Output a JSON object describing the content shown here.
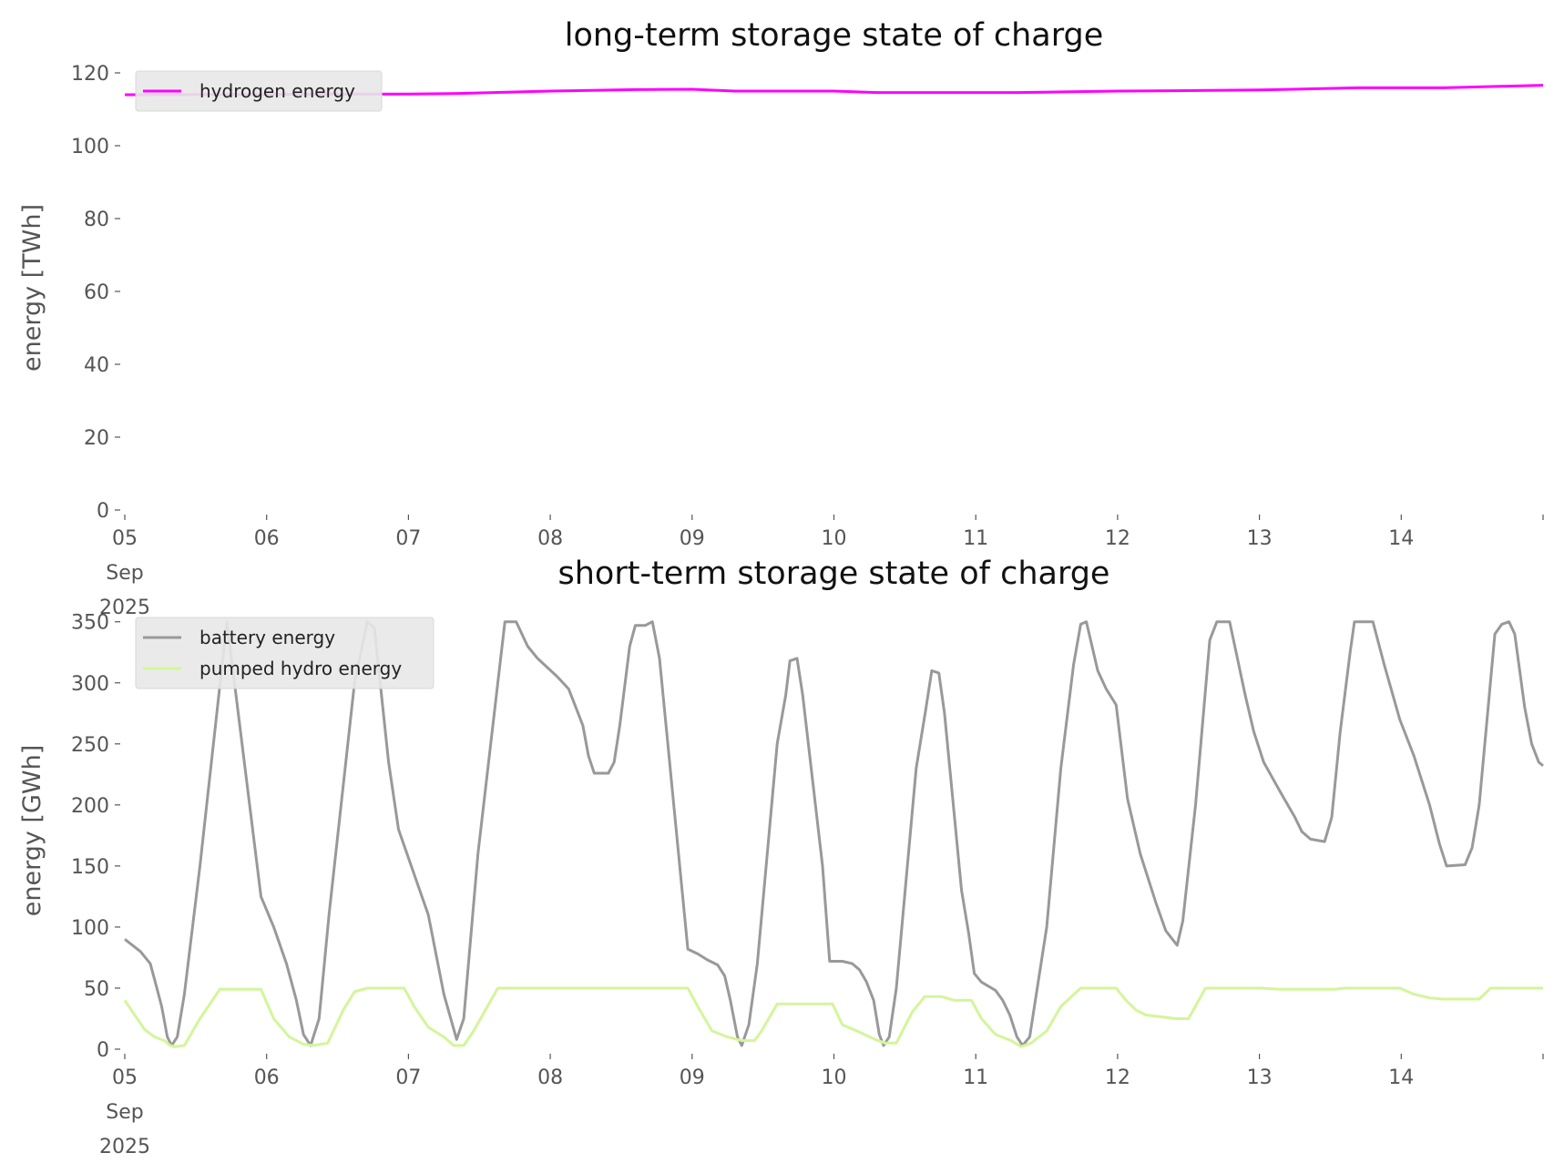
{
  "chart_data": [
    {
      "type": "line",
      "title": "long-term storage state of charge",
      "xlabel": "",
      "ylabel": "energy [TWh]",
      "x_unit": "days since 05 Sep 2025",
      "xlim": [
        0,
        10
      ],
      "ylim": [
        0,
        122
      ],
      "yticks": [
        0,
        20,
        40,
        60,
        80,
        100,
        120
      ],
      "xtick_labels": [
        "05\nSep\n2025",
        "06",
        "07",
        "08",
        "09",
        "10",
        "11",
        "12",
        "13",
        "14",
        ""
      ],
      "grid": false,
      "legend": "top-left",
      "series": [
        {
          "name": "hydrogen energy",
          "color": "#ff00ff",
          "x": [
            0,
            1,
            2,
            2.3,
            3,
            3.6,
            4,
            4.3,
            5,
            5.3,
            6,
            6.3,
            7,
            7.4,
            8,
            8.7,
            9.3,
            9.7,
            10
          ],
          "y": [
            114,
            114.1,
            114.2,
            114.3,
            115,
            115.4,
            115.5,
            115,
            115,
            114.6,
            114.6,
            114.6,
            115,
            115.1,
            115.3,
            115.9,
            115.9,
            116.3,
            116.6
          ]
        }
      ]
    },
    {
      "type": "line",
      "title": "short-term storage state of charge",
      "xlabel": "",
      "ylabel": "energy [GWh]",
      "x_unit": "days since 05 Sep 2025",
      "xlim": [
        0,
        10
      ],
      "ylim": [
        0,
        358
      ],
      "yticks": [
        0,
        50,
        100,
        150,
        200,
        250,
        300,
        350
      ],
      "xtick_labels": [
        "05\nSep\n2025",
        "06",
        "07",
        "08",
        "09",
        "10",
        "11",
        "12",
        "13",
        "14",
        ""
      ],
      "grid": false,
      "legend": "top-left",
      "series": [
        {
          "name": "battery energy",
          "color": "#999999",
          "x": [
            0,
            0.11,
            0.18,
            0.21,
            0.26,
            0.3,
            0.33,
            0.37,
            0.42,
            0.53,
            0.72,
            0.96,
            1.05,
            1.14,
            1.21,
            1.26,
            1.31,
            1.37,
            1.44,
            1.62,
            1.71,
            1.76,
            1.86,
            1.93,
            2.14,
            2.25,
            2.34,
            2.39,
            2.49,
            2.63,
            2.68,
            2.76,
            2.84,
            2.91,
            3.05,
            3.13,
            3.18,
            3.23,
            3.27,
            3.31,
            3.41,
            3.45,
            3.49,
            3.56,
            3.6,
            3.67,
            3.72,
            3.77,
            3.97,
            4.04,
            4.11,
            4.18,
            4.23,
            4.27,
            4.32,
            4.35,
            4.4,
            4.46,
            4.6,
            4.66,
            4.69,
            4.74,
            4.78,
            4.92,
            4.97,
            5.06,
            5.13,
            5.18,
            5.23,
            5.28,
            5.32,
            5.35,
            5.39,
            5.44,
            5.58,
            5.65,
            5.69,
            5.74,
            5.78,
            5.9,
            5.95,
            5.99,
            6.04,
            6.14,
            6.19,
            6.24,
            6.29,
            6.33,
            6.38,
            6.5,
            6.6,
            6.69,
            6.74,
            6.78,
            6.86,
            6.92,
            6.99,
            7.07,
            7.16,
            7.27,
            7.34,
            7.42,
            7.46,
            7.55,
            7.65,
            7.7,
            7.79,
            7.9,
            7.96,
            8.03,
            8.15,
            8.25,
            8.3,
            8.36,
            8.46,
            8.51,
            8.57,
            8.64,
            8.67,
            8.8,
            8.88,
            8.99,
            9.09,
            9.2,
            9.27,
            9.32,
            9.45,
            9.5,
            9.55,
            9.66,
            9.71,
            9.76,
            9.8,
            9.87,
            9.92,
            9.97,
            10
          ],
          "y": [
            90,
            80,
            70,
            57,
            35,
            10,
            3,
            10,
            45,
            150,
            350,
            125,
            100,
            70,
            40,
            12,
            3,
            25,
            110,
            300,
            350,
            345,
            235,
            180,
            110,
            45,
            8,
            25,
            160,
            300,
            350,
            350,
            330,
            320,
            305,
            295,
            280,
            265,
            240,
            226,
            226,
            235,
            265,
            330,
            347,
            347,
            350,
            320,
            82,
            78,
            73,
            69,
            60,
            40,
            10,
            3,
            20,
            70,
            250,
            290,
            318,
            320,
            290,
            150,
            72,
            72,
            70,
            65,
            55,
            40,
            12,
            3,
            10,
            50,
            230,
            280,
            310,
            308,
            275,
            130,
            95,
            62,
            55,
            48,
            40,
            28,
            10,
            3,
            10,
            100,
            230,
            315,
            348,
            350,
            310,
            295,
            282,
            205,
            160,
            120,
            97,
            85,
            105,
            200,
            335,
            350,
            350,
            290,
            260,
            235,
            210,
            190,
            178,
            172,
            170,
            190,
            260,
            325,
            350,
            350,
            315,
            270,
            240,
            200,
            168,
            150,
            151,
            165,
            200,
            340,
            348,
            350,
            340,
            280,
            250,
            235,
            232
          ]
        },
        {
          "name": "pumped hydro energy",
          "color": "#d4f59a",
          "x": [
            0,
            0.07,
            0.14,
            0.21,
            0.28,
            0.32,
            0.35,
            0.42,
            0.53,
            0.67,
            0.96,
            1.05,
            1.16,
            1.26,
            1.33,
            1.43,
            1.54,
            1.62,
            1.71,
            1.97,
            2.04,
            2.14,
            2.25,
            2.32,
            2.39,
            2.46,
            2.63,
            3.97,
            4.04,
            4.14,
            4.25,
            4.35,
            4.44,
            4.49,
            4.6,
            4.99,
            5.06,
            5.16,
            5.29,
            5.36,
            5.44,
            5.55,
            5.64,
            5.76,
            5.85,
            5.97,
            6.04,
            6.14,
            6.25,
            6.32,
            6.39,
            6.5,
            6.6,
            6.74,
            6.99,
            7.06,
            7.13,
            7.2,
            7.27,
            7.41,
            7.5,
            7.62,
            8.01,
            8.15,
            8.53,
            8.6,
            8.99,
            9.09,
            9.2,
            9.3,
            9.55,
            9.63,
            10
          ],
          "y": [
            40,
            28,
            16,
            10,
            7,
            3,
            2,
            3,
            25,
            49,
            49,
            25,
            10,
            4,
            3,
            5,
            32,
            47,
            50,
            50,
            35,
            18,
            10,
            3,
            3,
            15,
            50,
            50,
            35,
            15,
            10,
            7,
            7,
            15,
            37,
            37,
            20,
            15,
            8,
            5,
            5,
            30,
            43,
            43,
            40,
            40,
            25,
            12,
            7,
            2,
            5,
            15,
            35,
            50,
            50,
            40,
            32,
            28,
            27,
            25,
            25,
            50,
            50,
            49,
            49,
            50,
            50,
            45,
            42,
            41,
            41,
            50,
            50
          ]
        }
      ]
    }
  ]
}
